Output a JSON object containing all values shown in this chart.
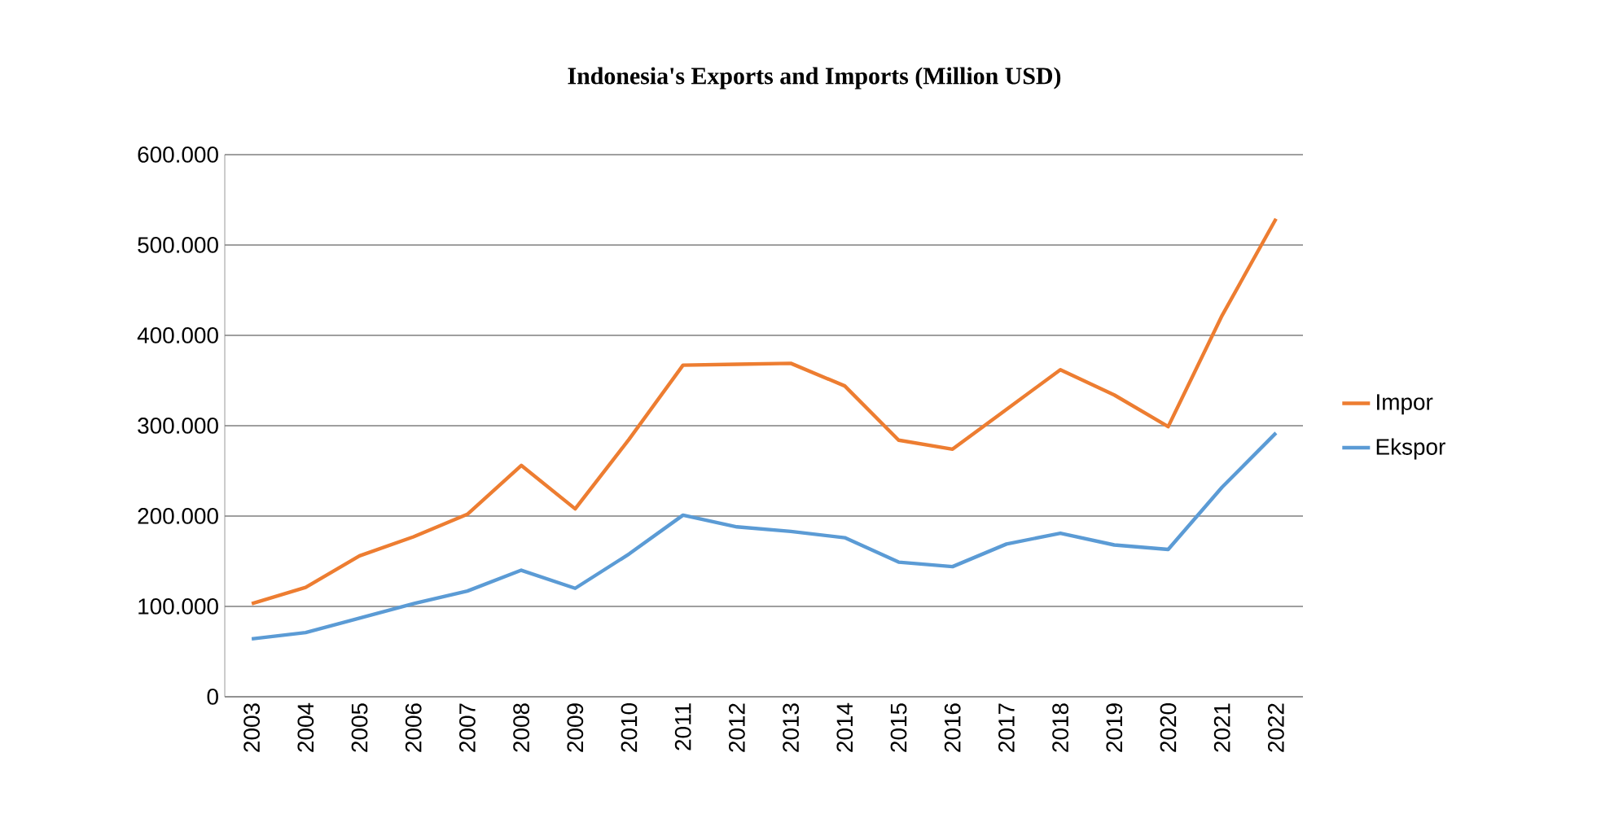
{
  "chart_data": {
    "type": "line",
    "title": "Indonesia's Exports and Imports (Million USD)",
    "categories": [
      "2003",
      "2004",
      "2005",
      "2006",
      "2007",
      "2008",
      "2009",
      "2010",
      "2011",
      "2012",
      "2013",
      "2014",
      "2015",
      "2016",
      "2017",
      "2018",
      "2019",
      "2020",
      "2021",
      "2022"
    ],
    "series": [
      {
        "name": "Impor",
        "color": "#ed7d31",
        "values": [
          103000,
          121000,
          156000,
          177000,
          202000,
          256000,
          208000,
          285000,
          367000,
          368000,
          369000,
          344000,
          284000,
          274000,
          318000,
          362000,
          334000,
          299000,
          422000,
          529000
        ]
      },
      {
        "name": "Ekspor",
        "color": "#5b9bd5",
        "values": [
          64000,
          71000,
          87000,
          103000,
          117000,
          140000,
          120000,
          158000,
          201000,
          188000,
          183000,
          176000,
          149000,
          144000,
          169000,
          181000,
          168000,
          163000,
          232000,
          292000
        ]
      }
    ],
    "ylim": [
      0,
      600000
    ],
    "yticks": [
      0,
      {
        "value": 100000,
        "label": "100.000"
      },
      {
        "value": 200000,
        "label": "200.000"
      },
      {
        "value": 300000,
        "label": "300.000"
      },
      {
        "value": 400000,
        "label": "400.000"
      },
      {
        "value": 500000,
        "label": "500.000"
      },
      {
        "value": 600000,
        "label": "600.000"
      }
    ],
    "grid": "y",
    "legend": "right",
    "marker": "none",
    "line_style": "solid"
  }
}
